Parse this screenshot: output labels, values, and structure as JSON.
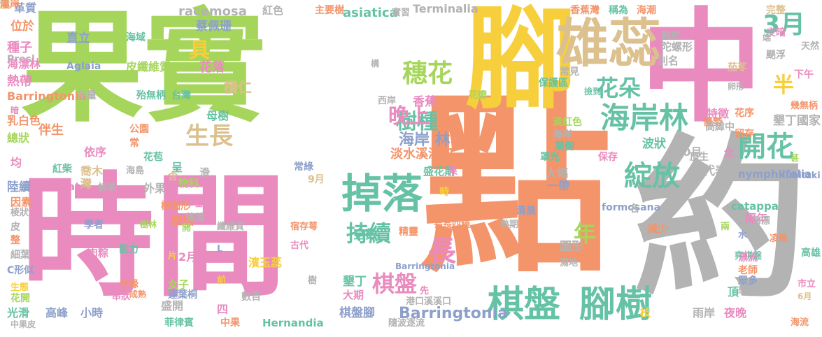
{
  "word_cloud": {
    "words": [
      {
        "text": "果實",
        "color": "#a5d65b"
      },
      {
        "text": "點",
        "color": "#f4946a"
      },
      {
        "text": "時間",
        "color": "#e98bbf"
      },
      {
        "text": "腳",
        "color": "#f7cf3c"
      },
      {
        "text": "中",
        "color": "#e98bbf"
      },
      {
        "text": "約",
        "color": "#b3b3b3"
      },
      {
        "text": "雄蕊",
        "color": "#dcc08d"
      },
      {
        "text": "掉落",
        "color": "#66c2a5"
      },
      {
        "text": "棋盤",
        "color": "#66c2a5"
      },
      {
        "text": "腳樹",
        "color": "#66c2a5"
      },
      {
        "text": "開花",
        "color": "#66c2a5"
      },
      {
        "text": "綻放",
        "color": "#66c2a5"
      },
      {
        "text": "海岸林",
        "color": "#66c2a5"
      },
      {
        "text": "3月",
        "color": "#66c2a5"
      },
      {
        "text": "穗花",
        "color": "#a5d65b"
      },
      {
        "text": "樹種",
        "color": "#66c2a5"
      },
      {
        "text": "花朵",
        "color": "#66c2a5"
      },
      {
        "text": "半",
        "color": "#f7cf3c"
      },
      {
        "text": "具",
        "color": "#f7cf3c"
      },
      {
        "text": "晚上",
        "color": "#e98bbf"
      },
      {
        "text": "生長",
        "color": "#dcc08d"
      },
      {
        "text": "持續",
        "color": "#66c2a5"
      },
      {
        "text": "長",
        "color": "#e98bbf"
      },
      {
        "text": "棋盤",
        "color": "#e98bbf"
      },
      {
        "text": "年",
        "color": "#a5d65b"
      },
      {
        "text": "海岸 林",
        "color": "#8da0cb"
      },
      {
        "text": "Barringtonia",
        "color": "#8da0cb"
      },
      {
        "text": "racemosa",
        "color": "#b3b3b3"
      },
      {
        "text": "asiatica",
        "color": "#66c2a5"
      },
      {
        "text": "Terminalia",
        "color": "#b3b3b3"
      },
      {
        "text": "蔡佩珊",
        "color": "#8da0cb"
      },
      {
        "text": "革質",
        "color": "#8da0cb"
      },
      {
        "text": "位於",
        "color": "#f4946a"
      },
      {
        "text": "直立",
        "color": "#8da0cb"
      },
      {
        "text": "海域",
        "color": "#66c2a5"
      },
      {
        "text": "種子",
        "color": "#e98bbf"
      },
      {
        "text": "Presl",
        "color": "#b3b3b3"
      },
      {
        "text": "海漂林",
        "color": "#e98bbf"
      },
      {
        "text": "Aglaia",
        "color": "#8da0cb"
      },
      {
        "text": "皮纖維質",
        "color": "#a5d65b"
      },
      {
        "text": "熱帶",
        "color": "#e98bbf"
      },
      {
        "text": "Barringtonia",
        "color": "#f4946a"
      },
      {
        "text": "花量",
        "color": "#b3b3b3"
      },
      {
        "text": "殆無柄",
        "color": "#66c2a5"
      },
      {
        "text": "台灣",
        "color": "#66c2a5"
      },
      {
        "text": "花落",
        "color": "#e98bbf"
      },
      {
        "text": "欖仁",
        "color": "#dcc08d"
      },
      {
        "text": "母樹",
        "color": "#66c2a5"
      },
      {
        "text": "香蕉",
        "color": "#e98bbf"
      },
      {
        "text": "西岸",
        "color": "#b3b3b3"
      },
      {
        "text": "乳白色",
        "color": "#f4946a"
      },
      {
        "text": "伴生",
        "color": "#f4946a"
      },
      {
        "text": "總狀",
        "color": "#a5d65b"
      },
      {
        "text": "公園",
        "color": "#f4946a"
      },
      {
        "text": "依序",
        "color": "#e98bbf"
      },
      {
        "text": "常",
        "color": "#f4946a"
      },
      {
        "text": "花苞",
        "color": "#66c2a5"
      },
      {
        "text": "海島",
        "color": "#b3b3b3"
      },
      {
        "text": "均",
        "color": "#e98bbf"
      },
      {
        "text": "紅柴",
        "color": "#66c2a5"
      },
      {
        "text": "喬木",
        "color": "#dcc08d"
      },
      {
        "text": "呈",
        "color": "#66c2a5"
      },
      {
        "text": "陸續",
        "color": "#8da0cb"
      },
      {
        "text": "Hayata",
        "color": "#e98bbf"
      },
      {
        "text": "灣",
        "color": "#dcc08d"
      },
      {
        "text": "核果",
        "color": "#b3b3b3"
      },
      {
        "text": "因素",
        "color": "#f4946a"
      },
      {
        "text": "外果",
        "color": "#b3b3b3"
      },
      {
        "text": "物科",
        "color": "#a5d65b"
      },
      {
        "text": "棱狀",
        "color": "#b3b3b3"
      },
      {
        "text": "橢圓形",
        "color": "#f4946a"
      },
      {
        "text": "皮",
        "color": "#b3b3b3"
      },
      {
        "text": "學者",
        "color": "#8da0cb"
      },
      {
        "text": "樹林",
        "color": "#a5d65b"
      },
      {
        "text": "壓縮",
        "color": "#f4946a"
      },
      {
        "text": "整",
        "color": "#f4946a"
      },
      {
        "text": "細葉",
        "color": "#b3b3b3"
      },
      {
        "text": "肉粽",
        "color": "#e98bbf"
      },
      {
        "text": "能力",
        "color": "#66c2a5"
      },
      {
        "text": "C形似",
        "color": "#8da0cb"
      },
      {
        "text": "2月",
        "color": "#e98bbf"
      },
      {
        "text": "生態",
        "color": "#f7cf3c"
      },
      {
        "text": "全緣",
        "color": "#f4946a"
      },
      {
        "text": "花開",
        "color": "#a5d65b"
      },
      {
        "text": "光滑",
        "color": "#66c2a5"
      },
      {
        "text": "高峰",
        "color": "#8da0cb"
      },
      {
        "text": "小時",
        "color": "#8da0cb"
      },
      {
        "text": "盛開",
        "color": "#b3b3b3"
      },
      {
        "text": "四",
        "color": "#e98bbf"
      },
      {
        "text": "中果皮",
        "color": "#b3b3b3"
      },
      {
        "text": "串狀",
        "color": "#e98bbf"
      },
      {
        "text": "菲律賓",
        "color": "#66c2a5"
      },
      {
        "text": "女子",
        "color": "#a5d65b"
      },
      {
        "text": "蓮葉桐",
        "color": "#8da0cb"
      },
      {
        "text": "中果",
        "color": "#f4946a"
      },
      {
        "text": "Hernandia",
        "color": "#66c2a5"
      },
      {
        "text": "數百",
        "color": "#b3b3b3"
      },
      {
        "text": "纖維質",
        "color": "#b3b3b3"
      },
      {
        "text": "濱玉蕊",
        "color": "#f7cf3c"
      },
      {
        "text": "宿存萼",
        "color": "#f4946a"
      },
      {
        "text": "古代",
        "color": "#e98bbf"
      },
      {
        "text": "樹",
        "color": "#b3b3b3"
      },
      {
        "text": "全數",
        "color": "#66c2a5"
      },
      {
        "text": "精靈",
        "color": "#f4946a"
      },
      {
        "text": "長長四稜",
        "color": "#f4946a"
      },
      {
        "text": "熟期",
        "color": "#b3b3b3"
      },
      {
        "text": "大期",
        "color": "#e98bbf"
      },
      {
        "text": "墾丁",
        "color": "#66c2a5"
      },
      {
        "text": "棋盤腳",
        "color": "#8da0cb"
      },
      {
        "text": "Barringtonia",
        "color": "#8da0cb"
      },
      {
        "text": "港口溪溪口",
        "color": "#b3b3b3"
      },
      {
        "text": "隨波逐流",
        "color": "#b3b3b3"
      },
      {
        "text": "淡水溪溪口",
        "color": "#f4946a"
      },
      {
        "text": "盛花期",
        "color": "#66c2a5"
      },
      {
        "text": "果",
        "color": "#e98bbf"
      },
      {
        "text": "時",
        "color": "#f7cf3c"
      },
      {
        "text": "大幅",
        "color": "#b3b3b3"
      },
      {
        "text": "一帶",
        "color": "#8da0cb"
      },
      {
        "text": "清晨",
        "color": "#8da0cb"
      },
      {
        "text": "formosana",
        "color": "#8da0cb"
      },
      {
        "text": "catappa",
        "color": "#66c2a5"
      },
      {
        "text": "nymphiifolia",
        "color": "#8da0cb"
      },
      {
        "text": "Kubitzki",
        "color": "#8da0cb"
      },
      {
        "text": "常綠",
        "color": "#8da0cb"
      },
      {
        "text": "9月",
        "color": "#dcc08d"
      },
      {
        "text": "淡紅色",
        "color": "#a5d65b"
      },
      {
        "text": "海岸",
        "color": "#b3b3b3"
      },
      {
        "text": "葉倒",
        "color": "#66c2a5"
      },
      {
        "text": "罩光",
        "color": "#66c2a5"
      },
      {
        "text": "保存",
        "color": "#e98bbf"
      },
      {
        "text": "10月",
        "color": "#b3b3b3"
      },
      {
        "text": "頂生",
        "color": "#b3b3b3"
      },
      {
        "text": "全",
        "color": "#e98bbf"
      },
      {
        "text": "代表性",
        "color": "#b3b3b3"
      },
      {
        "text": "波狀",
        "color": "#66c2a5"
      },
      {
        "text": "優勢",
        "color": "#f4946a"
      },
      {
        "text": "特徵",
        "color": "#e98bbf"
      },
      {
        "text": "高緯中",
        "color": "#b3b3b3"
      },
      {
        "text": "花序",
        "color": "#f4946a"
      },
      {
        "text": "留存",
        "color": "#f4946a"
      },
      {
        "text": "墾丁國家",
        "color": "#b3b3b3"
      },
      {
        "text": "幾無柄",
        "color": "#f4946a"
      },
      {
        "text": "隔年",
        "color": "#e98bbf"
      },
      {
        "text": "海漂",
        "color": "#b3b3b3"
      },
      {
        "text": "水",
        "color": "#8da0cb"
      },
      {
        "text": "減少",
        "color": "#f4946a"
      },
      {
        "text": "兩",
        "color": "#a5d65b"
      },
      {
        "text": "凌晨",
        "color": "#f4946a"
      },
      {
        "text": "弈棋盤",
        "color": "#66c2a5"
      },
      {
        "text": "圓形",
        "color": "#b3b3b3"
      },
      {
        "text": "濕地",
        "color": "#b3b3b3"
      },
      {
        "text": "漂流",
        "color": "#e98bbf"
      },
      {
        "text": "老師",
        "color": "#f4946a"
      },
      {
        "text": "眾多",
        "color": "#8da0cb"
      },
      {
        "text": "學生",
        "color": "#b3b3b3"
      },
      {
        "text": "頂",
        "color": "#66c2a5"
      },
      {
        "text": "市立",
        "color": "#e98bbf"
      },
      {
        "text": "高雄",
        "color": "#66c2a5"
      },
      {
        "text": "6月",
        "color": "#dcc08d"
      },
      {
        "text": "枝",
        "color": "#f7cf3c"
      },
      {
        "text": "雨岸",
        "color": "#b3b3b3"
      },
      {
        "text": "夜晚",
        "color": "#e98bbf"
      },
      {
        "text": "海流",
        "color": "#f4946a"
      },
      {
        "text": "下午",
        "color": "#e98bbf"
      },
      {
        "text": "天然",
        "color": "#b3b3b3"
      },
      {
        "text": "皮暗",
        "color": "#e98bbf"
      },
      {
        "text": "颶浮",
        "color": "#b3b3b3"
      },
      {
        "text": "完整",
        "color": "#dcc08d"
      },
      {
        "text": "海潮",
        "color": "#f4946a"
      },
      {
        "text": "稱為",
        "color": "#66c2a5"
      },
      {
        "text": "香蕉灣",
        "color": "#f4946a"
      },
      {
        "text": "懸於",
        "color": "#b3b3b3"
      },
      {
        "text": "陀螺形",
        "color": "#b3b3b3"
      },
      {
        "text": "別名",
        "color": "#b3b3b3"
      },
      {
        "text": "茄苳",
        "color": "#dcc08d"
      },
      {
        "text": "常見",
        "color": "#b3b3b3"
      },
      {
        "text": "保護區",
        "color": "#66c2a5"
      },
      {
        "text": "撿到",
        "color": "#66c2a5"
      },
      {
        "text": "卵形",
        "color": "#b3b3b3"
      },
      {
        "text": "紅色",
        "color": "#b3b3b3"
      },
      {
        "text": "主要樹",
        "color": "#f4946a"
      },
      {
        "text": "實習",
        "color": "#b3b3b3"
      },
      {
        "text": "花瓣",
        "color": "#a5d65b"
      },
      {
        "text": "構",
        "color": "#b3b3b3"
      },
      {
        "text": "滑",
        "color": "#b3b3b3"
      },
      {
        "text": "暗",
        "color": "#e98bbf"
      },
      {
        "text": "含",
        "color": "#dcc08d"
      },
      {
        "text": "下垂",
        "color": "#e98bbf"
      },
      {
        "text": "傳播",
        "color": "#b3b3b3"
      },
      {
        "text": "開",
        "color": "#a5d65b"
      },
      {
        "text": "L",
        "color": "#8da0cb"
      },
      {
        "text": "片",
        "color": "#f7cf3c"
      },
      {
        "text": "成熟",
        "color": "#f4946a"
      },
      {
        "text": "前",
        "color": "#f7cf3c"
      },
      {
        "text": "先",
        "color": "#e98bbf"
      },
      {
        "text": "名",
        "color": "#b3b3b3"
      },
      {
        "text": "端",
        "color": "#b3b3b3"
      },
      {
        "text": "甚",
        "color": "#a5d65b"
      },
      {
        "text": "陸",
        "color": "#b3b3b3"
      },
      {
        "text": "成",
        "color": "#f7cf3c"
      },
      {
        "text": "溪岸",
        "color": "#f4946a"
      }
    ]
  }
}
